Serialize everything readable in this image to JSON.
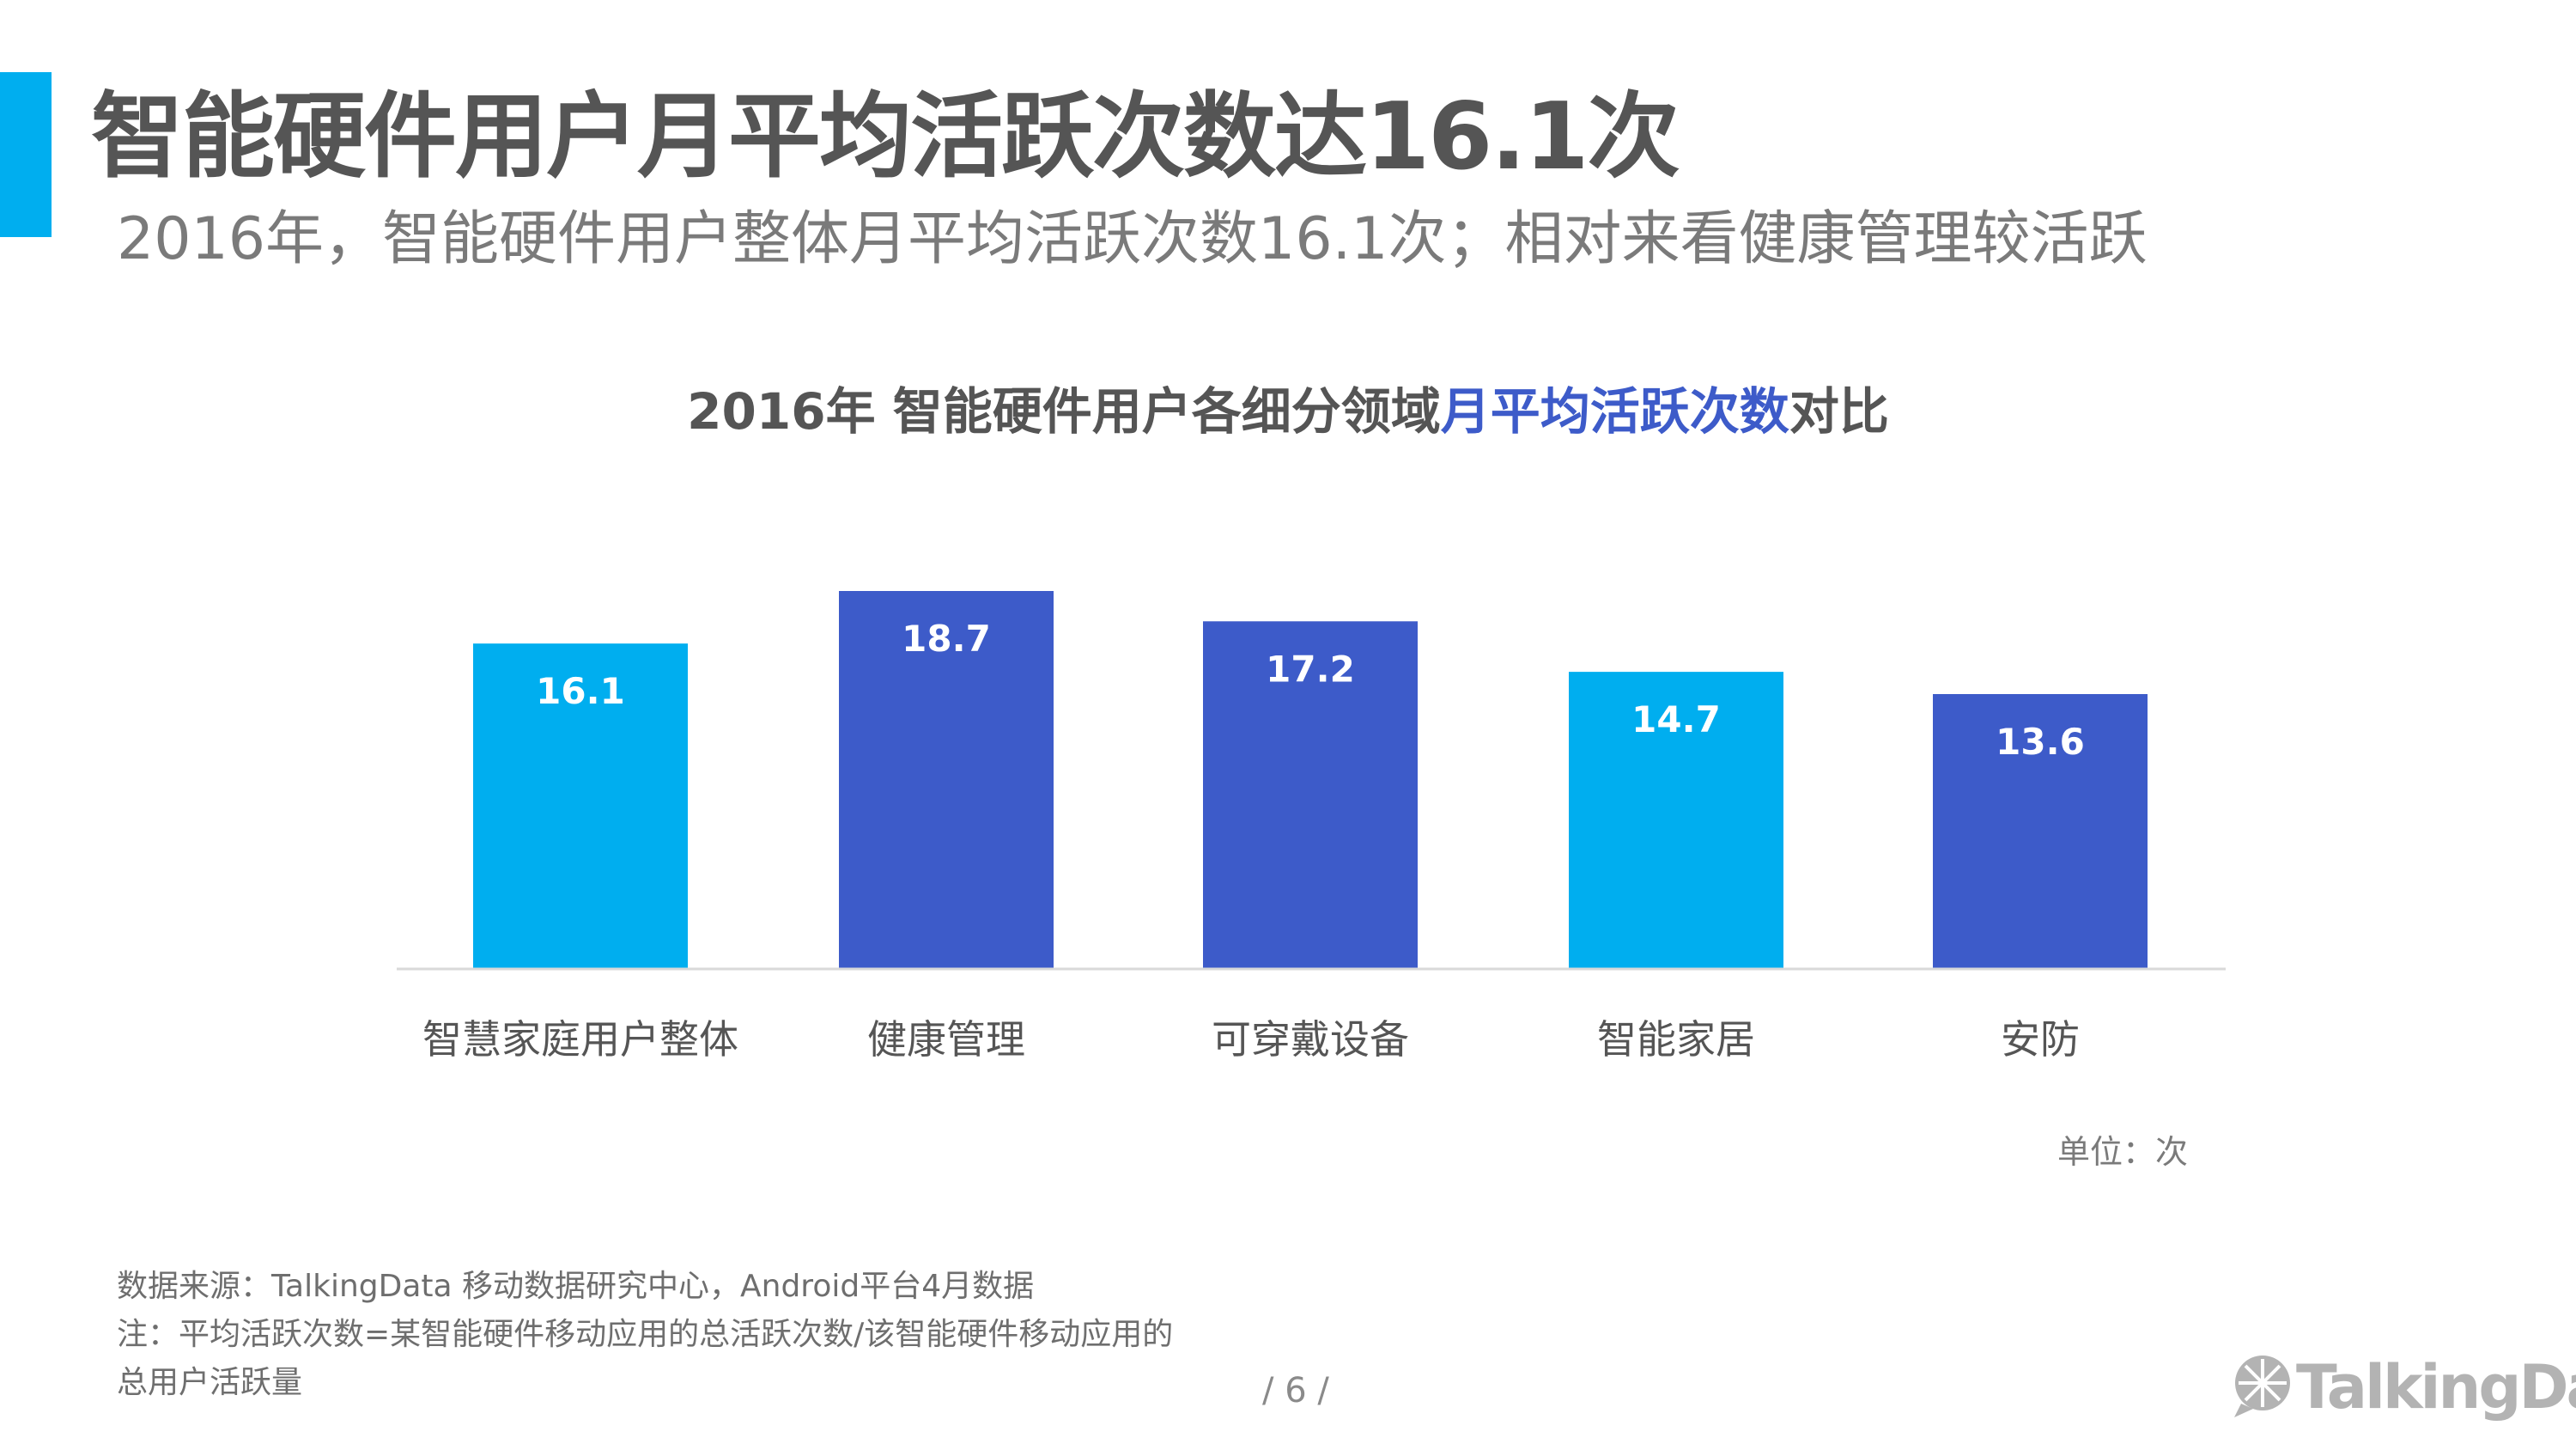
{
  "header": {
    "title": "智能硬件用户月平均活跃次数达16.1次",
    "subtitle": "2016年，智能硬件用户整体月平均活跃次数16.1次；相对来看健康管理较活跃"
  },
  "chart_title": {
    "prefix": "2016年 智能硬件用户各细分领域",
    "highlight": "月平均活跃次数",
    "suffix": "对比"
  },
  "colors": {
    "accent": "#00aeef",
    "bar_cyan": "#00aeef",
    "bar_blue": "#3d5bc9",
    "title_highlight": "#3d5bc9",
    "text": "#555555"
  },
  "chart_data": {
    "type": "bar",
    "title": "2016年 智能硬件用户各细分领域月平均活跃次数对比",
    "categories": [
      "智慧家庭用户整体",
      "健康管理",
      "可穿戴设备",
      "智能家居",
      "安防"
    ],
    "values": [
      16.1,
      18.7,
      17.2,
      14.7,
      13.6
    ],
    "bar_colors": [
      "#00aeef",
      "#3d5bc9",
      "#3d5bc9",
      "#00aeef",
      "#3d5bc9"
    ],
    "data_labels": [
      "16.1",
      "18.7",
      "17.2",
      "14.7",
      "13.6"
    ],
    "unit": "单位：次",
    "xlabel": "",
    "ylabel": "",
    "ylim": [
      0,
      20
    ],
    "grid": false,
    "legend": "none"
  },
  "footnotes": {
    "source": "数据来源：TalkingData 移动数据研究中心，Android平台4月数据",
    "note_line1": "注：平均活跃次数=某智能硬件移动应用的总活跃次数/该智能硬件移动应用的",
    "note_line2": "总用户活跃量"
  },
  "page_number": "/  6  /",
  "logo": {
    "text": "TalkingData",
    "icon": "talkingdata-logo-icon"
  }
}
